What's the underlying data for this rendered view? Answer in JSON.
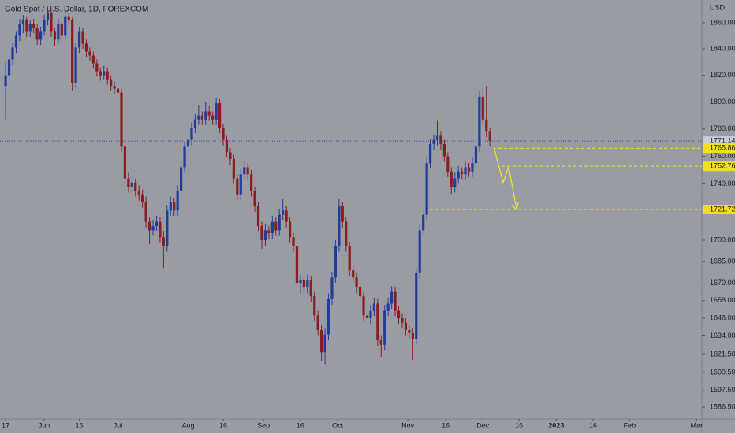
{
  "chart_data": {
    "type": "candlestick",
    "title": "Gold Spot / U.S. Dollar, 1D, FOREXCOM",
    "y_axis_label": "USD",
    "log_scale": true,
    "grid": false,
    "up_color": "#1f3c9e",
    "down_color": "#8a1d1d",
    "level_color": "#f2df1f",
    "last_color": "#2f4fa8",
    "ylim": [
      1578.8,
      1877.6
    ],
    "yticks": [
      {
        "value": 1860,
        "label": "1860.00"
      },
      {
        "value": 1840,
        "label": "1840.00"
      },
      {
        "value": 1820,
        "label": "1820.00"
      },
      {
        "value": 1800,
        "label": "1800.00"
      },
      {
        "value": 1780,
        "label": "1780.00"
      },
      {
        "value": 1760,
        "label": "1760.00"
      },
      {
        "value": 1740,
        "label": "1740.00"
      },
      {
        "value": 1700,
        "label": "1700.00"
      },
      {
        "value": 1685,
        "label": "1685.00"
      },
      {
        "value": 1670,
        "label": "1670.00"
      },
      {
        "value": 1658,
        "label": "1658.00"
      },
      {
        "value": 1646,
        "label": "1646.00"
      },
      {
        "value": 1634,
        "label": "1634.00"
      },
      {
        "value": 1621.5,
        "label": "1621.50"
      },
      {
        "value": 1609.5,
        "label": "1609.50"
      },
      {
        "value": 1597.5,
        "label": "1597.50"
      },
      {
        "value": 1586.5,
        "label": "1586.50"
      }
    ],
    "xlim": [
      -1.6,
      198.4
    ],
    "xticks": [
      {
        "value": 0,
        "label": "17"
      },
      {
        "value": 11,
        "label": "Jun"
      },
      {
        "value": 21,
        "label": "16"
      },
      {
        "value": 32,
        "label": "Jul"
      },
      {
        "value": 52,
        "label": "Aug"
      },
      {
        "value": 62,
        "label": "16"
      },
      {
        "value": 73.5,
        "label": "Sep"
      },
      {
        "value": 84,
        "label": "16"
      },
      {
        "value": 94.6,
        "label": "Oct"
      },
      {
        "value": 114.6,
        "label": "Nov"
      },
      {
        "value": 125.4,
        "label": "16"
      },
      {
        "value": 136,
        "label": "Dec"
      },
      {
        "value": 146.3,
        "label": "16"
      },
      {
        "value": 156.9,
        "label": "2023"
      },
      {
        "value": 167.4,
        "label": "16"
      },
      {
        "value": 177.8,
        "label": "Feb"
      },
      {
        "value": 196.9,
        "label": "Mar"
      }
    ],
    "last_price": 1771.14,
    "levels": [
      1765.86,
      1752.76,
      1721.72
    ],
    "candles": [
      [
        1812,
        1830,
        1787,
        1820
      ],
      [
        1820,
        1836,
        1815,
        1832
      ],
      [
        1832,
        1845,
        1828,
        1841
      ],
      [
        1841,
        1853,
        1837,
        1850
      ],
      [
        1850,
        1863,
        1846,
        1859
      ],
      [
        1859,
        1866,
        1852,
        1862
      ],
      [
        1862,
        1865,
        1849,
        1853
      ],
      [
        1853,
        1862,
        1849,
        1859
      ],
      [
        1859,
        1863,
        1852,
        1856
      ],
      [
        1856,
        1859,
        1843,
        1847
      ],
      [
        1847,
        1857,
        1843,
        1853
      ],
      [
        1853,
        1866,
        1850,
        1862
      ],
      [
        1862,
        1872,
        1858,
        1868
      ],
      [
        1868,
        1870,
        1849,
        1853
      ],
      [
        1853,
        1856,
        1842,
        1847
      ],
      [
        1847,
        1863,
        1844,
        1859
      ],
      [
        1859,
        1861,
        1846,
        1850
      ],
      [
        1850,
        1870,
        1847,
        1865
      ],
      [
        1865,
        1868,
        1858,
        1862
      ],
      [
        1862,
        1864,
        1808,
        1814
      ],
      [
        1814,
        1845,
        1810,
        1841
      ],
      [
        1841,
        1857,
        1837,
        1853
      ],
      [
        1853,
        1856,
        1840,
        1844
      ],
      [
        1844,
        1847,
        1834,
        1838
      ],
      [
        1838,
        1841,
        1831,
        1835
      ],
      [
        1835,
        1838,
        1825,
        1829
      ],
      [
        1829,
        1832,
        1819,
        1823
      ],
      [
        1823,
        1826,
        1816,
        1820
      ],
      [
        1820,
        1827,
        1817,
        1823
      ],
      [
        1823,
        1826,
        1813,
        1817
      ],
      [
        1817,
        1820,
        1808,
        1812
      ],
      [
        1812,
        1815,
        1806,
        1810
      ],
      [
        1810,
        1815,
        1803,
        1807
      ],
      [
        1807,
        1810,
        1763,
        1767
      ],
      [
        1767,
        1771,
        1740,
        1744
      ],
      [
        1744,
        1748,
        1734,
        1738
      ],
      [
        1738,
        1745,
        1734,
        1741
      ],
      [
        1741,
        1744,
        1731,
        1735
      ],
      [
        1735,
        1739,
        1728,
        1732
      ],
      [
        1732,
        1736,
        1723,
        1727
      ],
      [
        1727,
        1731,
        1709,
        1713
      ],
      [
        1713,
        1716,
        1697,
        1707
      ],
      [
        1707,
        1714,
        1703,
        1710
      ],
      [
        1710,
        1717,
        1706,
        1713
      ],
      [
        1713,
        1716,
        1698,
        1702
      ],
      [
        1702,
        1706,
        1680,
        1696
      ],
      [
        1696,
        1725,
        1692,
        1721
      ],
      [
        1721,
        1731,
        1717,
        1727
      ],
      [
        1727,
        1730,
        1717,
        1721
      ],
      [
        1721,
        1739,
        1717,
        1735
      ],
      [
        1735,
        1756,
        1731,
        1752
      ],
      [
        1752,
        1771,
        1748,
        1767
      ],
      [
        1767,
        1776,
        1763,
        1772
      ],
      [
        1772,
        1785,
        1768,
        1781
      ],
      [
        1781,
        1791,
        1777,
        1787
      ],
      [
        1787,
        1798,
        1783,
        1790
      ],
      [
        1790,
        1793,
        1783,
        1787
      ],
      [
        1787,
        1800,
        1783,
        1793
      ],
      [
        1793,
        1797,
        1786,
        1790
      ],
      [
        1790,
        1793,
        1783,
        1787
      ],
      [
        1787,
        1803,
        1783,
        1799
      ],
      [
        1799,
        1802,
        1777,
        1781
      ],
      [
        1781,
        1784,
        1768,
        1772
      ],
      [
        1772,
        1775,
        1759,
        1763
      ],
      [
        1763,
        1766,
        1754,
        1758
      ],
      [
        1758,
        1761,
        1740,
        1744
      ],
      [
        1744,
        1747,
        1728,
        1732
      ],
      [
        1732,
        1751,
        1728,
        1747
      ],
      [
        1747,
        1757,
        1743,
        1752
      ],
      [
        1752,
        1755,
        1743,
        1747
      ],
      [
        1747,
        1750,
        1731,
        1735
      ],
      [
        1735,
        1738,
        1720,
        1724
      ],
      [
        1724,
        1727,
        1706,
        1710
      ],
      [
        1710,
        1713,
        1694,
        1700
      ],
      [
        1700,
        1711,
        1696,
        1707
      ],
      [
        1707,
        1710,
        1701,
        1705
      ],
      [
        1705,
        1717,
        1701,
        1713
      ],
      [
        1713,
        1716,
        1703,
        1707
      ],
      [
        1707,
        1722,
        1703,
        1718
      ],
      [
        1718,
        1729,
        1714,
        1721
      ],
      [
        1721,
        1724,
        1709,
        1713
      ],
      [
        1713,
        1716,
        1698,
        1702
      ],
      [
        1702,
        1705,
        1692,
        1696
      ],
      [
        1696,
        1699,
        1660,
        1670
      ],
      [
        1670,
        1676,
        1662,
        1672
      ],
      [
        1672,
        1675,
        1663,
        1667
      ],
      [
        1667,
        1676,
        1663,
        1672
      ],
      [
        1672,
        1675,
        1657,
        1661
      ],
      [
        1661,
        1664,
        1644,
        1648
      ],
      [
        1648,
        1651,
        1634,
        1638
      ],
      [
        1638,
        1641,
        1617,
        1623
      ],
      [
        1623,
        1639,
        1615,
        1635
      ],
      [
        1635,
        1663,
        1631,
        1659
      ],
      [
        1659,
        1678,
        1655,
        1674
      ],
      [
        1674,
        1700,
        1670,
        1696
      ],
      [
        1696,
        1729,
        1692,
        1724
      ],
      [
        1724,
        1727,
        1709,
        1713
      ],
      [
        1713,
        1716,
        1692,
        1696
      ],
      [
        1696,
        1699,
        1675,
        1679
      ],
      [
        1679,
        1682,
        1670,
        1674
      ],
      [
        1674,
        1677,
        1663,
        1667
      ],
      [
        1667,
        1670,
        1657,
        1661
      ],
      [
        1661,
        1664,
        1644,
        1648
      ],
      [
        1648,
        1652,
        1642,
        1646
      ],
      [
        1646,
        1655,
        1642,
        1651
      ],
      [
        1651,
        1660,
        1647,
        1656
      ],
      [
        1656,
        1659,
        1627,
        1631
      ],
      [
        1631,
        1634,
        1620,
        1628
      ],
      [
        1628,
        1655,
        1624,
        1651
      ],
      [
        1651,
        1660,
        1647,
        1656
      ],
      [
        1656,
        1668,
        1652,
        1664
      ],
      [
        1664,
        1667,
        1647,
        1651
      ],
      [
        1651,
        1654,
        1642,
        1646
      ],
      [
        1646,
        1649,
        1639,
        1643
      ],
      [
        1643,
        1646,
        1634,
        1638
      ],
      [
        1638,
        1641,
        1632,
        1636
      ],
      [
        1636,
        1639,
        1618,
        1632
      ],
      [
        1632,
        1681,
        1628,
        1677
      ],
      [
        1677,
        1711,
        1673,
        1707
      ],
      [
        1707,
        1722,
        1703,
        1718
      ],
      [
        1718,
        1759,
        1714,
        1755
      ],
      [
        1755,
        1773,
        1751,
        1769
      ],
      [
        1769,
        1776,
        1765,
        1772
      ],
      [
        1772,
        1786,
        1768,
        1775
      ],
      [
        1775,
        1778,
        1765,
        1769
      ],
      [
        1769,
        1772,
        1756,
        1760
      ],
      [
        1760,
        1763,
        1745,
        1749
      ],
      [
        1749,
        1752,
        1733,
        1738
      ],
      [
        1738,
        1748,
        1734,
        1744
      ],
      [
        1744,
        1753,
        1740,
        1749
      ],
      [
        1749,
        1752,
        1743,
        1747
      ],
      [
        1747,
        1756,
        1743,
        1752
      ],
      [
        1752,
        1755,
        1745,
        1749
      ],
      [
        1749,
        1759,
        1745,
        1755
      ],
      [
        1755,
        1771,
        1751,
        1767
      ],
      [
        1767,
        1808,
        1763,
        1804
      ],
      [
        1804,
        1810,
        1783,
        1787
      ],
      [
        1787,
        1812,
        1774,
        1778
      ],
      [
        1778,
        1781,
        1767,
        1771.14
      ]
    ]
  }
}
